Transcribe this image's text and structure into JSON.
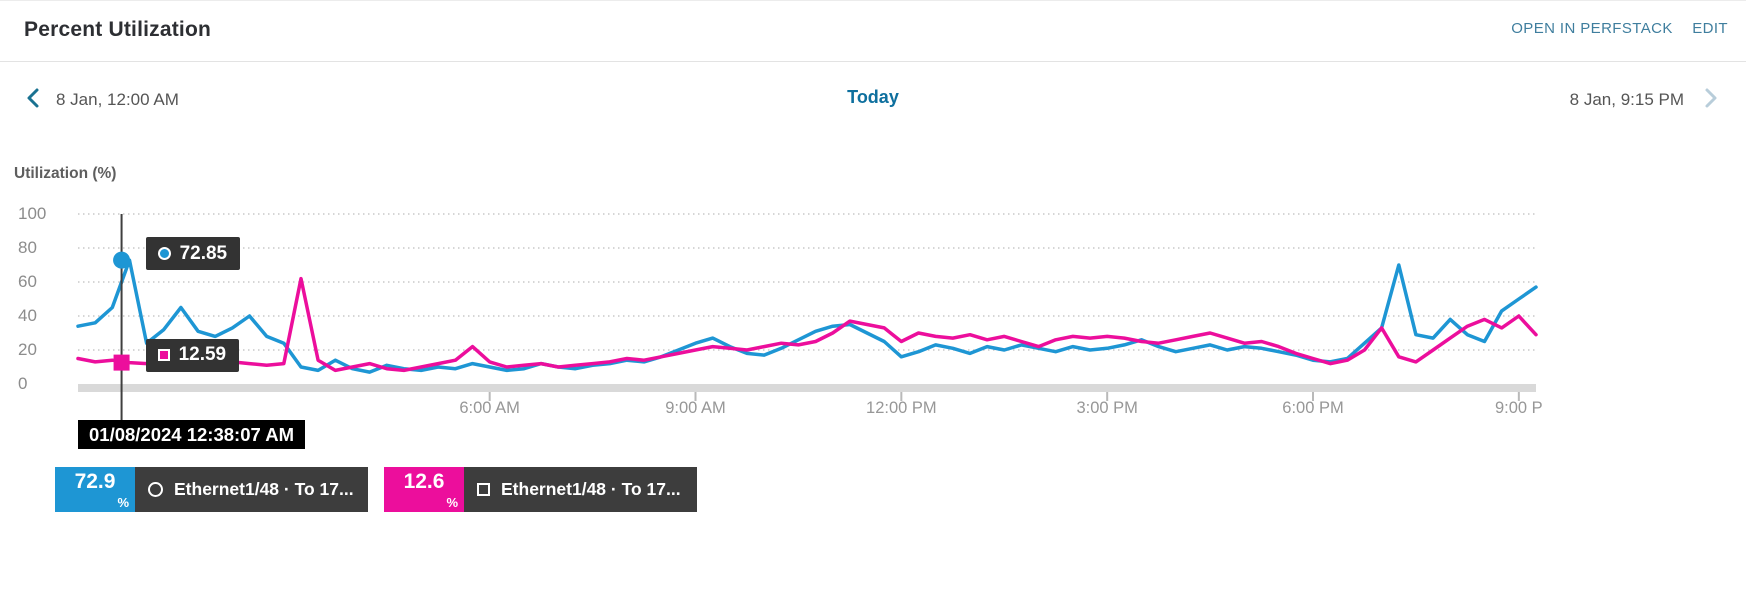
{
  "header": {
    "title": "Percent Utilization",
    "links": {
      "perfstack": "OPEN IN PERFSTACK",
      "edit": "EDIT"
    }
  },
  "time_nav": {
    "start": "8 Jan, 12:00 AM",
    "center": "Today",
    "end": "8 Jan, 9:15 PM"
  },
  "chart_data": {
    "type": "line",
    "title": "Percent Utilization",
    "ylabel": "Utilization (%)",
    "ylim": [
      0,
      100
    ],
    "yticks": [
      0,
      20,
      40,
      60,
      80,
      100
    ],
    "grid": "horizontal-dotted",
    "legend_position": "bottom-left",
    "x_range_hours": [
      0,
      21.25
    ],
    "xticks": [
      {
        "hour": 6,
        "label": "6:00 AM"
      },
      {
        "hour": 9,
        "label": "9:00 AM"
      },
      {
        "hour": 12,
        "label": "12:00 PM"
      },
      {
        "hour": 15,
        "label": "3:00 PM"
      },
      {
        "hour": 18,
        "label": "6:00 PM"
      },
      {
        "hour": 21,
        "label": "9:00 P"
      }
    ],
    "x_times": [
      "00:00",
      "00:15",
      "00:30",
      "00:45",
      "01:00",
      "01:15",
      "01:30",
      "01:45",
      "02:00",
      "02:15",
      "02:30",
      "02:45",
      "03:00",
      "03:15",
      "03:30",
      "03:45",
      "04:00",
      "04:15",
      "04:30",
      "04:45",
      "05:00",
      "05:15",
      "05:30",
      "05:45",
      "06:00",
      "06:15",
      "06:30",
      "06:45",
      "07:00",
      "07:15",
      "07:30",
      "07:45",
      "08:00",
      "08:15",
      "08:30",
      "08:45",
      "09:00",
      "09:15",
      "09:30",
      "09:45",
      "10:00",
      "10:15",
      "10:30",
      "10:45",
      "11:00",
      "11:15",
      "11:30",
      "11:45",
      "12:00",
      "12:15",
      "12:30",
      "12:45",
      "13:00",
      "13:15",
      "13:30",
      "13:45",
      "14:00",
      "14:15",
      "14:30",
      "14:45",
      "15:00",
      "15:15",
      "15:30",
      "15:45",
      "16:00",
      "16:15",
      "16:30",
      "16:45",
      "17:00",
      "17:15",
      "17:30",
      "17:45",
      "18:00",
      "18:15",
      "18:30",
      "18:45",
      "19:00",
      "19:15",
      "19:30",
      "19:45",
      "20:00",
      "20:15",
      "20:30",
      "20:45",
      "21:00",
      "21:15"
    ],
    "series": [
      {
        "name": "Ethernet1/48 · To 17...",
        "color": "#1e96d4",
        "marker": "circle",
        "values": [
          34,
          36,
          45,
          72.85,
          24,
          32,
          45,
          31,
          28,
          33,
          40,
          28,
          24,
          10,
          8,
          14,
          9,
          7,
          11,
          9,
          8,
          10,
          9,
          12,
          10,
          8,
          9,
          12,
          10,
          9,
          11,
          12,
          14,
          13,
          16,
          20,
          24,
          27,
          22,
          18,
          17,
          21,
          26,
          31,
          34,
          35,
          30,
          25,
          16,
          19,
          23,
          21,
          18,
          22,
          20,
          23,
          21,
          19,
          22,
          20,
          21,
          23,
          26,
          22,
          19,
          21,
          23,
          20,
          22,
          21,
          19,
          17,
          14,
          13,
          15,
          24,
          33,
          70,
          29,
          27,
          38,
          29,
          25,
          43,
          50,
          57
        ]
      },
      {
        "name": "Ethernet1/48 · To 17...",
        "color": "#ec0e9c",
        "marker": "square",
        "values": [
          15,
          13,
          14,
          12.59,
          12,
          13,
          12,
          11,
          12,
          13,
          12,
          11,
          12,
          62,
          14,
          8,
          10,
          12,
          9,
          8,
          10,
          12,
          14,
          22,
          13,
          10,
          11,
          12,
          10,
          11,
          12,
          13,
          15,
          14,
          16,
          18,
          20,
          22,
          21,
          20,
          22,
          24,
          23,
          25,
          30,
          37,
          35,
          33,
          25,
          30,
          28,
          27,
          29,
          26,
          28,
          25,
          22,
          26,
          28,
          27,
          28,
          27,
          25,
          24,
          26,
          28,
          30,
          27,
          24,
          25,
          22,
          18,
          15,
          12,
          14,
          20,
          33,
          16,
          13,
          20,
          27,
          34,
          38,
          33,
          40,
          29
        ]
      }
    ],
    "hover": {
      "hour": 0.635,
      "time_label": "01/08/2024 12:38:07 AM",
      "values": [
        72.85,
        12.59
      ]
    }
  },
  "legend": {
    "items": [
      {
        "value": "72.9",
        "unit": "%",
        "label": "Ethernet1/48 · To 17...",
        "color": "#1e96d4",
        "marker": "circle"
      },
      {
        "value": "12.6",
        "unit": "%",
        "label": "Ethernet1/48 · To 17...",
        "color": "#ec0e9c",
        "marker": "square"
      }
    ]
  },
  "colors": {
    "series1": "#1e96d4",
    "series2": "#ec0e9c",
    "link": "#3f7e9e",
    "today": "#0d6f9e",
    "tooltip_bg": "#333333",
    "date_tooltip_bg": "#000000",
    "legend_bg": "#3d3d3d",
    "axis_bar": "#d9d9d9",
    "gridline": "#c9c9c9"
  }
}
